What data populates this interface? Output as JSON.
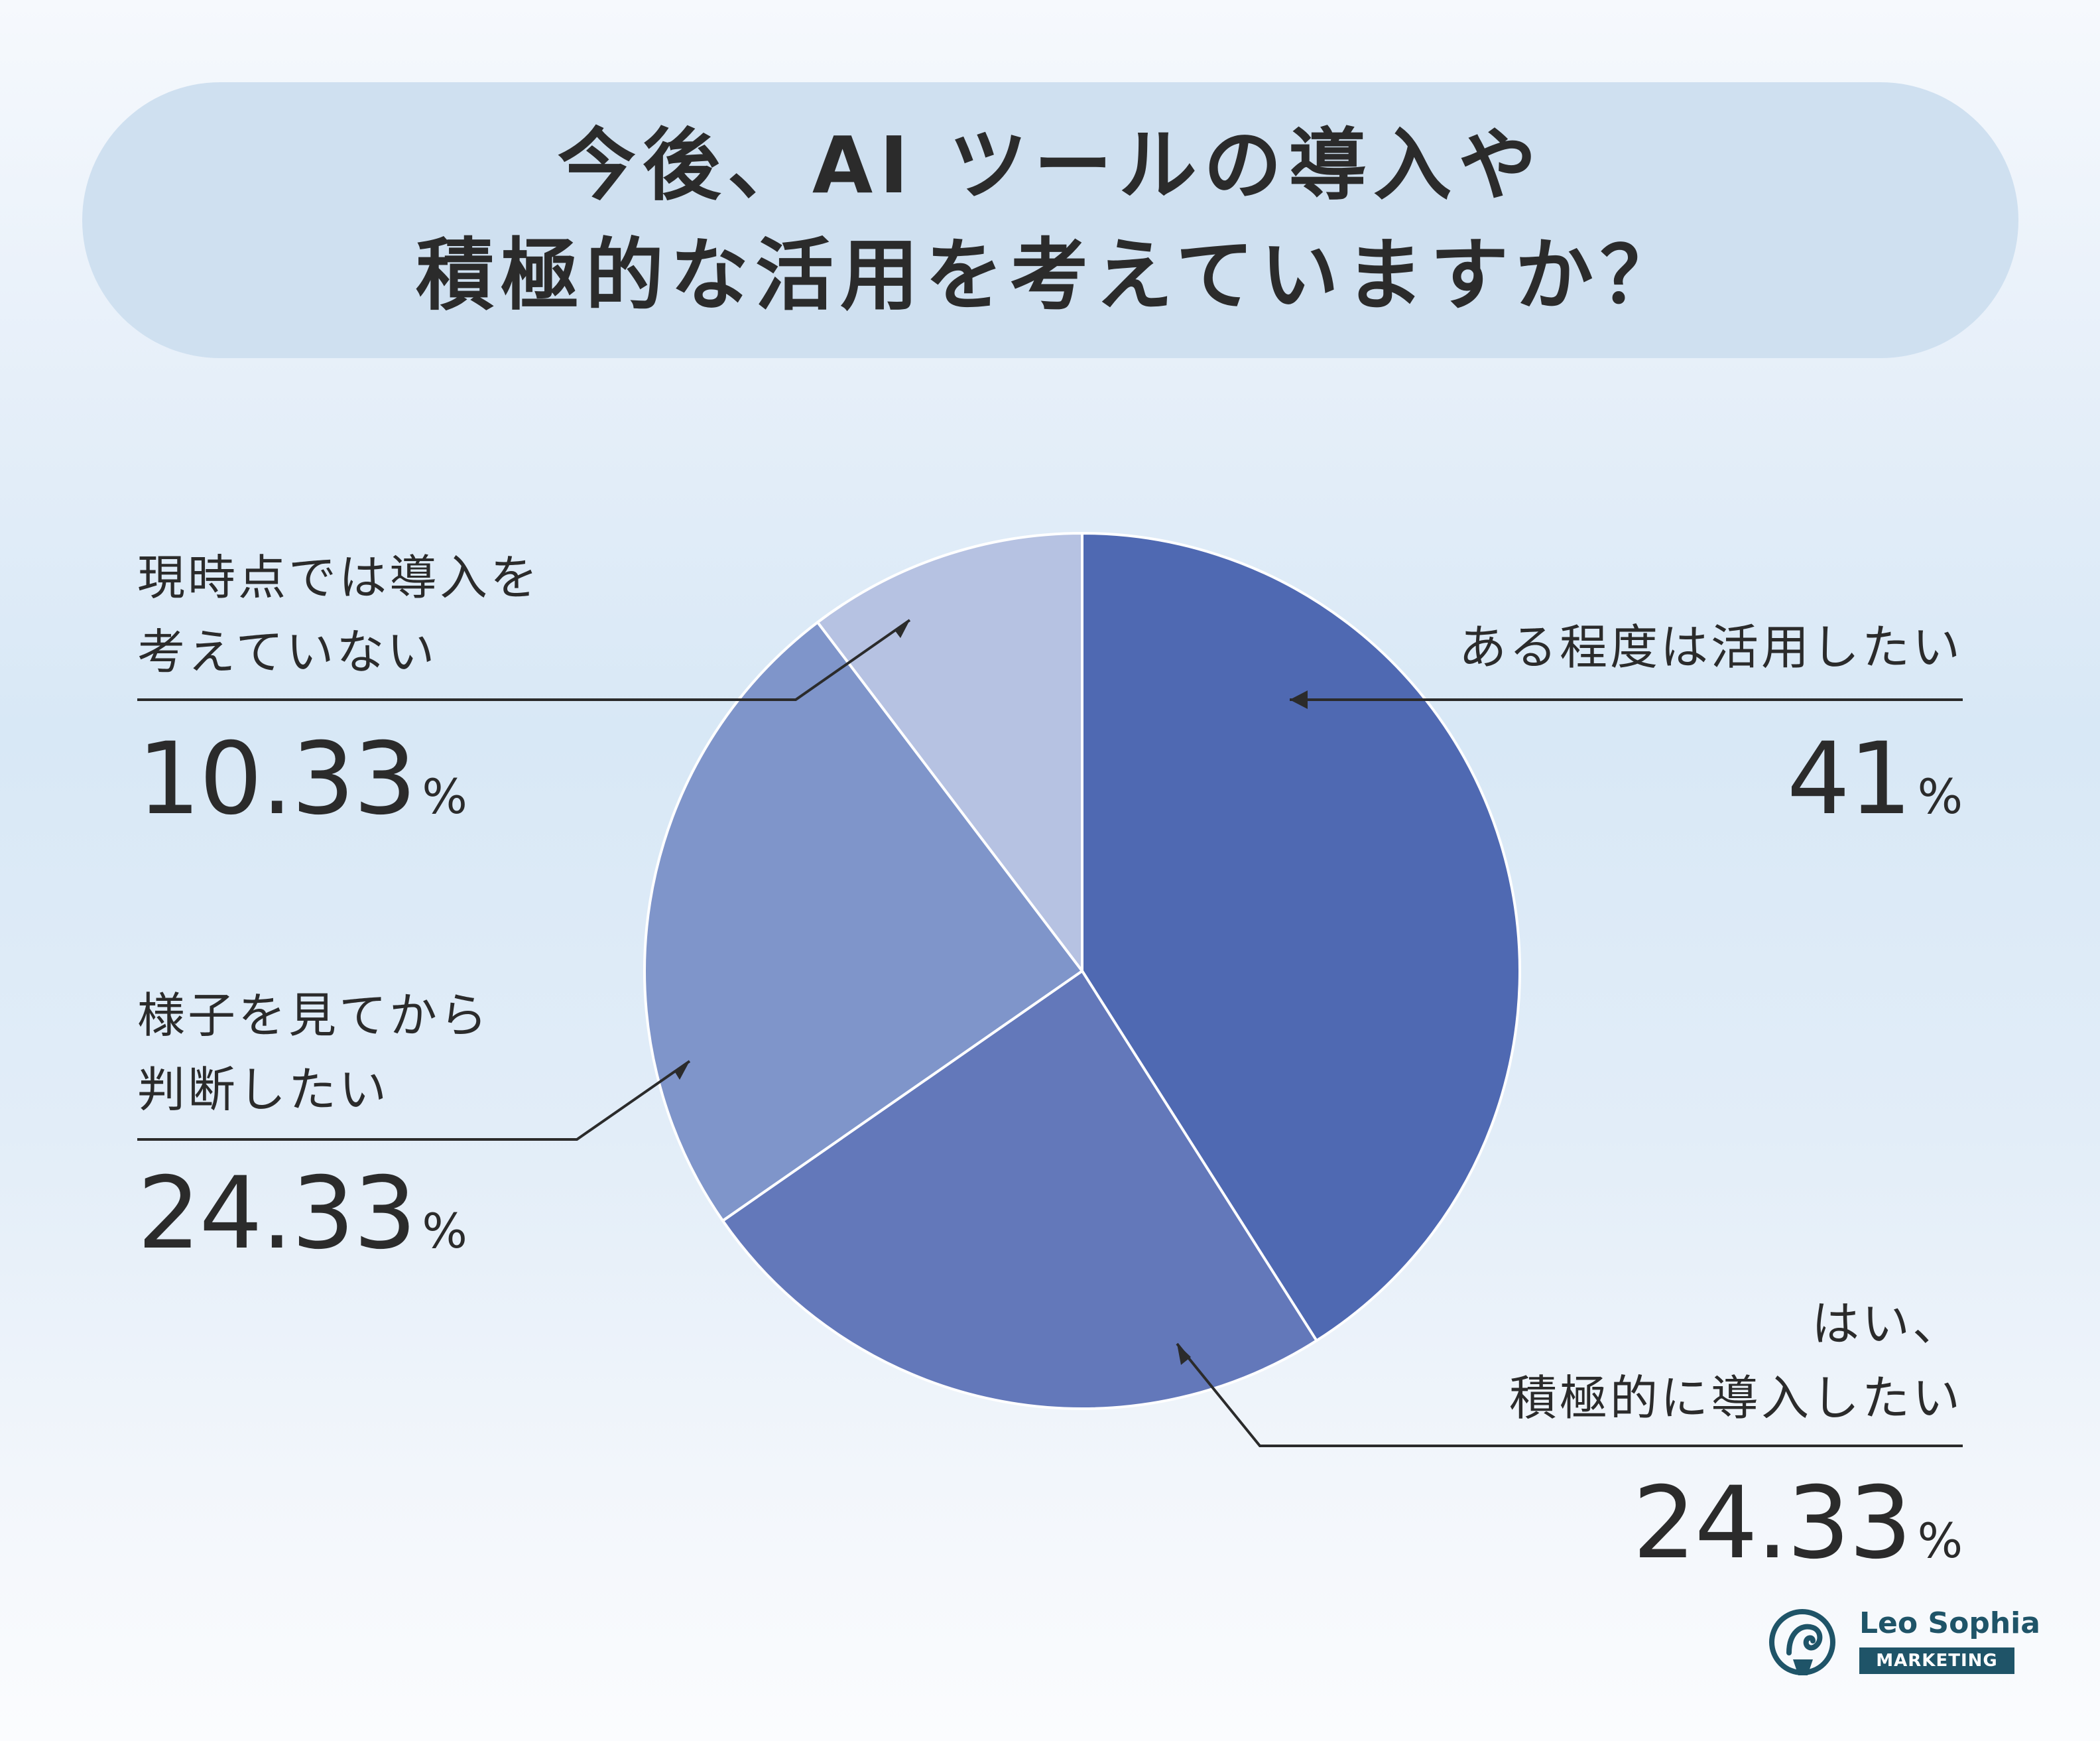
{
  "title": {
    "line1": "今後、AI ツールの導入や",
    "line2": "積極的な活用を考えていますか？"
  },
  "chart_data": {
    "type": "pie",
    "title": "今後、AI ツールの導入や積極的な活用を考えていますか？",
    "slices": [
      {
        "key": "some",
        "label_lines": [
          "ある程度は活用したい"
        ],
        "value": 41,
        "value_text": "41",
        "color": "#4f69b2"
      },
      {
        "key": "yes",
        "label_lines": [
          "はい、",
          "積極的に導入したい"
        ],
        "value": 24.33,
        "value_text": "24.33",
        "color": "#6378ba"
      },
      {
        "key": "wait",
        "label_lines": [
          "様子を見てから",
          "判断したい"
        ],
        "value": 24.33,
        "value_text": "24.33",
        "color": "#7f95ca"
      },
      {
        "key": "no",
        "label_lines": [
          "現時点では導入を",
          "考えていない"
        ],
        "value": 10.33,
        "value_text": "10.33",
        "color": "#b6c2e2"
      }
    ],
    "unit": "%",
    "start_angle_deg": 0,
    "direction": "clockwise"
  },
  "logo": {
    "name": "Leo Sophia",
    "sub": "MARKETING",
    "color": "#1f5468"
  }
}
